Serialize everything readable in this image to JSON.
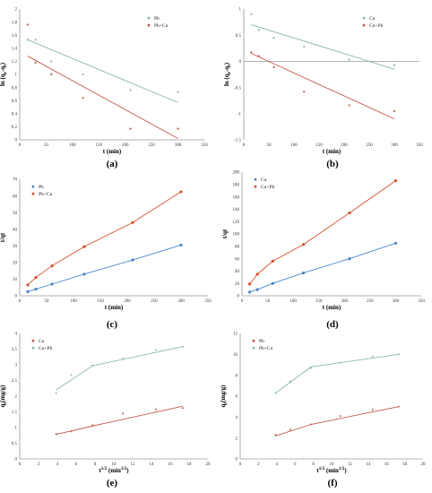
{
  "chart_data": [
    {
      "id": "a",
      "type": "scatter",
      "panel_label": "(a)",
      "xlabel": "t (min)",
      "ylabel": "ln (qe-qt)",
      "ylabel_main": "ln (q",
      "ylabel_sub1": "e",
      "ylabel_mid": "-q",
      "ylabel_sub2": "t",
      "ylabel_end": ")",
      "xlim": [
        0,
        350
      ],
      "ylim": [
        0,
        2
      ],
      "xticks": [
        0,
        50,
        100,
        150,
        200,
        250,
        300,
        350
      ],
      "yticks": [
        0,
        0.2,
        0.4,
        0.6,
        0.8,
        1,
        1.2,
        1.4,
        1.6,
        1.8,
        2
      ],
      "ytick_labels": [
        "0",
        "0.2",
        "0.4",
        "0.6",
        "0.8",
        "1",
        "1.2",
        "1.4",
        "1.6",
        "1.8",
        "2"
      ],
      "legend_position": "top-right",
      "series": [
        {
          "name": "Pb",
          "color": "#8ab8a8",
          "x": [
            15,
            30,
            60,
            120,
            210,
            300
          ],
          "y": [
            1.53,
            1.53,
            1.2,
            1.0,
            0.76,
            0.73
          ],
          "fit": [
            [
              15,
              1.53
            ],
            [
              300,
              0.57
            ]
          ]
        },
        {
          "name": "Pb+Cu",
          "color": "#c05a4a",
          "x": [
            15,
            30,
            60,
            120,
            210,
            300
          ],
          "y": [
            1.76,
            1.18,
            1.0,
            0.64,
            0.17,
            0.17
          ],
          "fit": [
            [
              15,
              1.28
            ],
            [
              300,
              0.02
            ]
          ]
        }
      ]
    },
    {
      "id": "b",
      "type": "scatter",
      "panel_label": "(b)",
      "xlabel": "t (min)",
      "ylabel": "ln (qe-qt)",
      "ylabel_main": "ln (q",
      "ylabel_sub1": "e",
      "ylabel_mid": "-q",
      "ylabel_sub2": "t",
      "ylabel_end": ")",
      "xlim": [
        0,
        350
      ],
      "ylim": [
        -1.5,
        1
      ],
      "xticks": [
        0,
        50,
        100,
        150,
        200,
        250,
        300,
        350
      ],
      "yticks": [
        -1.5,
        -1,
        -0.5,
        0,
        0.5,
        1
      ],
      "ytick_labels": [
        "-1.5",
        "-1",
        "-0.5",
        "0",
        "0.5",
        "1"
      ],
      "legend_position": "top-right",
      "series": [
        {
          "name": "Cu",
          "color": "#8ab8a8",
          "x": [
            15,
            30,
            60,
            120,
            210,
            300
          ],
          "y": [
            0.9,
            0.6,
            0.45,
            0.28,
            0.03,
            -0.07
          ],
          "fit": [
            [
              15,
              0.7
            ],
            [
              300,
              -0.15
            ]
          ]
        },
        {
          "name": "Cu+Pb",
          "color": "#c05a4a",
          "x": [
            15,
            30,
            60,
            120,
            210,
            300
          ],
          "y": [
            0.17,
            0.1,
            -0.11,
            -0.58,
            -0.84,
            -0.95
          ],
          "fit": [
            [
              15,
              0.15
            ],
            [
              300,
              -1.1
            ]
          ]
        }
      ]
    },
    {
      "id": "c",
      "type": "line",
      "panel_label": "(c)",
      "xlabel": "t (min)",
      "ylabel": "t/qt",
      "xlim": [
        0,
        350
      ],
      "ylim": [
        0,
        70
      ],
      "xticks": [
        0,
        50,
        100,
        150,
        200,
        250,
        300,
        350
      ],
      "yticks": [
        0,
        10,
        20,
        30,
        40,
        50,
        60,
        70
      ],
      "ytick_labels": [
        "0",
        "10",
        "20",
        "30",
        "40",
        "50",
        "60",
        "70"
      ],
      "legend_position": "top-left",
      "series": [
        {
          "name": "Pb",
          "color": "#4a86c8",
          "x": [
            15,
            30,
            60,
            120,
            210,
            300
          ],
          "y": [
            2.5,
            4,
            7,
            13,
            21.5,
            30.5
          ]
        },
        {
          "name": "Pb+Cu",
          "color": "#d4502a",
          "x": [
            15,
            30,
            60,
            120,
            210,
            300
          ],
          "y": [
            6.5,
            11,
            18,
            29.5,
            44,
            62.5
          ]
        }
      ]
    },
    {
      "id": "d",
      "type": "line",
      "panel_label": "(d)",
      "xlabel": "t (min)",
      "ylabel": "t/qt",
      "xlim": [
        0,
        350
      ],
      "ylim": [
        0,
        200
      ],
      "xticks": [
        0,
        50,
        100,
        150,
        200,
        250,
        300,
        350
      ],
      "yticks": [
        0,
        20,
        40,
        60,
        80,
        100,
        120,
        140,
        160,
        180,
        200
      ],
      "ytick_labels": [
        "0",
        "20",
        "40",
        "60",
        "80",
        "100",
        "120",
        "140",
        "160",
        "180",
        "200"
      ],
      "legend_position": "top-left",
      "series": [
        {
          "name": "Cu",
          "color": "#4a86c8",
          "x": [
            15,
            30,
            60,
            120,
            210,
            300
          ],
          "y": [
            6,
            10,
            20,
            37,
            60,
            85
          ]
        },
        {
          "name": "Cu+Pb",
          "color": "#d4502a",
          "x": [
            15,
            30,
            60,
            120,
            210,
            300
          ],
          "y": [
            19,
            35,
            56,
            83,
            134,
            186
          ]
        }
      ]
    },
    {
      "id": "e",
      "type": "line",
      "panel_label": "(e)",
      "xlabel": "t1/2 (min1/2)",
      "xlabel_main": "t",
      "xlabel_sup1": "1/2",
      "xlabel_mid": " (min",
      "xlabel_sup2": "1/2",
      "xlabel_end": ")",
      "ylabel": "qt(mg/g)",
      "ylabel_main": "q",
      "ylabel_sub": "t",
      "ylabel_end": "(mg/g)",
      "xlim": [
        0,
        20
      ],
      "ylim": [
        0,
        4
      ],
      "xticks": [
        0,
        2,
        4,
        6,
        8,
        10,
        12,
        14,
        16,
        18,
        20
      ],
      "yticks": [
        0,
        0.5,
        1,
        1.5,
        2,
        2.5,
        3,
        3.5,
        4
      ],
      "ytick_labels": [
        "0",
        "0.5",
        "1",
        "1.5",
        "2",
        "2.5",
        "3",
        "3.5",
        "4"
      ],
      "legend_position": "top-left",
      "series": [
        {
          "name": "Cu",
          "color": "#c05a4a",
          "x": [
            3.87,
            5.48,
            7.75,
            10.95,
            14.49,
            17.32
          ],
          "y": [
            0.8,
            0.88,
            1.08,
            1.45,
            1.58,
            1.62
          ],
          "fit_x": [
            3.87,
            7.75,
            17.32
          ],
          "fit_y": [
            0.78,
            1.05,
            1.68
          ]
        },
        {
          "name": "Cu+Pb",
          "color": "#8ab8a8",
          "x": [
            3.87,
            5.48,
            7.75,
            10.95,
            14.49,
            17.32
          ],
          "y": [
            2.1,
            2.68,
            2.98,
            3.2,
            3.48,
            3.58
          ],
          "fit_x": [
            3.87,
            7.75,
            17.32
          ],
          "fit_y": [
            2.2,
            2.97,
            3.58
          ]
        }
      ]
    },
    {
      "id": "f",
      "type": "line",
      "panel_label": "(f)",
      "xlabel": "t1/2 (min1/2)",
      "xlabel_main": "t",
      "xlabel_sup1": "1/2",
      "xlabel_mid": " (min",
      "xlabel_sup2": "1/2",
      "xlabel_end": ")",
      "ylabel": "qt(mg/g)",
      "ylabel_main": "q",
      "ylabel_sub": "t",
      "ylabel_end": "(mg/g)",
      "xlim": [
        0,
        20
      ],
      "ylim": [
        0,
        12
      ],
      "xticks": [
        0,
        2,
        4,
        6,
        8,
        10,
        12,
        14,
        16,
        18,
        20
      ],
      "yticks": [
        0,
        2,
        4,
        6,
        8,
        10,
        12
      ],
      "ytick_labels": [
        "0",
        "2",
        "4",
        "6",
        "8",
        "10",
        "12"
      ],
      "legend_position": "top-left",
      "series": [
        {
          "name": "Pb",
          "color": "#c05a4a",
          "x": [
            3.87,
            5.48,
            7.75,
            10.95,
            14.49,
            17.32
          ],
          "y": [
            2.3,
            2.8,
            3.3,
            4.1,
            4.7,
            5.0
          ],
          "fit_x": [
            3.87,
            7.75,
            17.32
          ],
          "fit_y": [
            2.2,
            3.3,
            5.0
          ]
        },
        {
          "name": "Pb+Cu",
          "color": "#8ab8a8",
          "x": [
            3.87,
            5.48,
            7.75,
            10.95,
            14.49,
            17.32
          ],
          "y": [
            6.3,
            7.4,
            8.7,
            9.2,
            9.8,
            10.0
          ],
          "fit_x": [
            3.87,
            7.75,
            17.32
          ],
          "fit_y": [
            6.3,
            8.8,
            10.0
          ]
        }
      ]
    }
  ]
}
